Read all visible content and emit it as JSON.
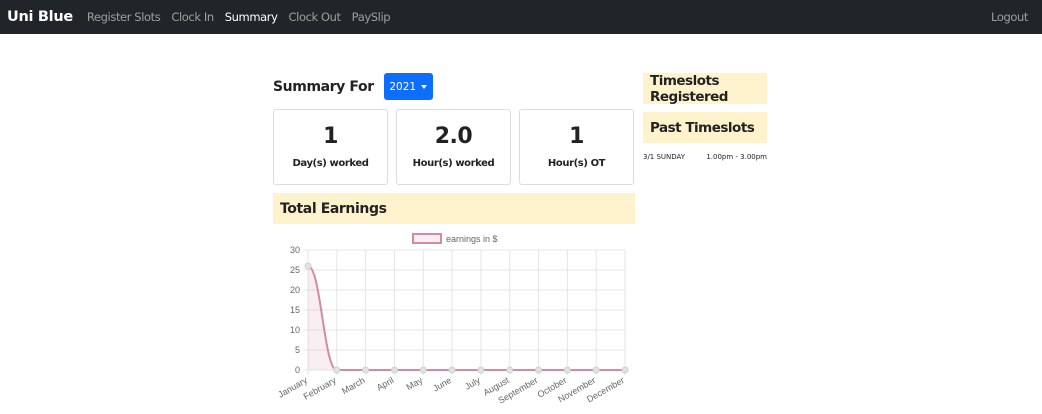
{
  "navbar": {
    "brand": "Uni Blue",
    "links": [
      "Register Slots",
      "Clock In",
      "Summary",
      "Clock Out",
      "PaySlip"
    ],
    "active": "Summary",
    "logout": "Logout"
  },
  "summary": {
    "title": "Summary For",
    "year": "2021"
  },
  "stats": [
    {
      "value": "1",
      "label": "Day(s) worked"
    },
    {
      "value": "2.0",
      "label": "Hour(s) worked"
    },
    {
      "value": "1",
      "label": "Hour(s) OT"
    }
  ],
  "earnings": {
    "title": "Total Earnings"
  },
  "sidebar": {
    "registered_title": "Timeslots Registered",
    "past_title": "Past Timeslots",
    "past_slots": [
      {
        "day": "3/1 SUNDAY",
        "time": "1.00pm - 3.00pm"
      }
    ]
  },
  "colors": {
    "navbar_bg": "#212529",
    "accent_blue": "#0d6efd",
    "header_bg": "#fff3cd",
    "series_line": "#d48aa6"
  },
  "chart_data": {
    "type": "line",
    "categories": [
      "January",
      "February",
      "March",
      "April",
      "May",
      "June",
      "July",
      "August",
      "September",
      "October",
      "November",
      "December"
    ],
    "series": [
      {
        "name": "earnings in $",
        "values": [
          26,
          0,
          0,
          0,
          0,
          0,
          0,
          0,
          0,
          0,
          0,
          0
        ]
      }
    ],
    "ylim": [
      0,
      30
    ],
    "yticks": [
      0,
      5,
      10,
      15,
      20,
      25,
      30
    ],
    "grid": true,
    "legend": "top-center"
  }
}
